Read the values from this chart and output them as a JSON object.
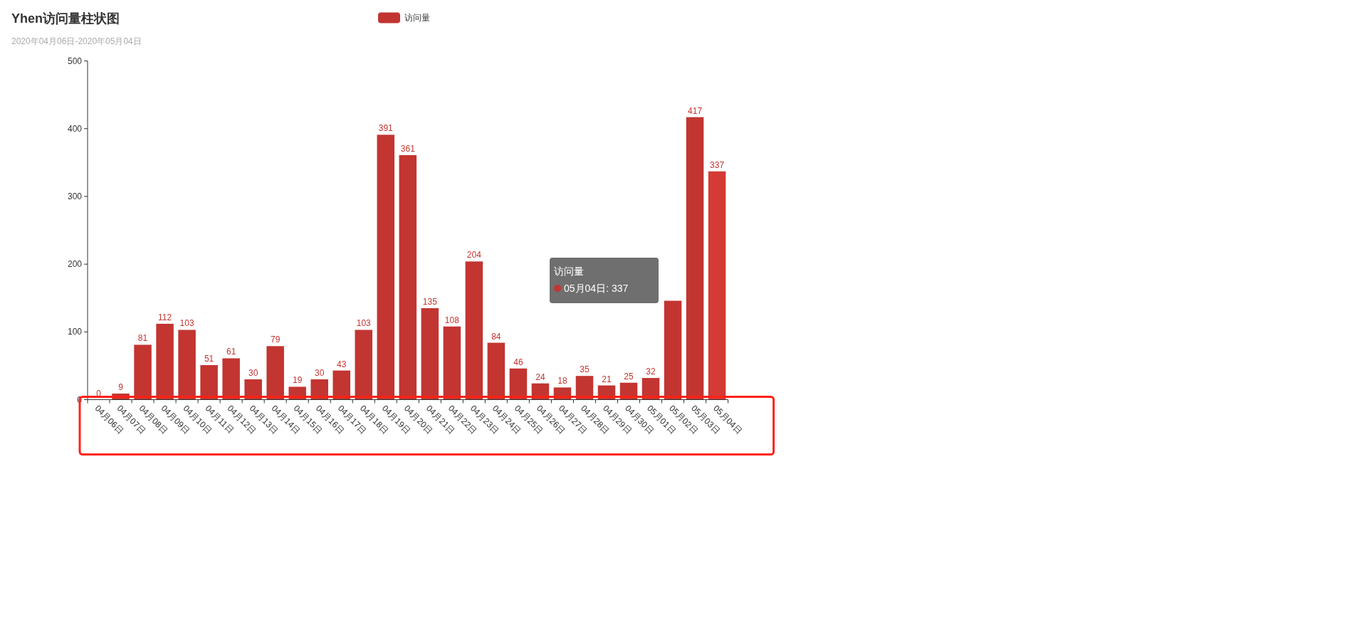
{
  "chart_data": {
    "type": "bar",
    "title": "Yhen访问量柱状图",
    "subtitle": "2020年04月06日-2020年05月04日",
    "categories": [
      "04月06日",
      "04月07日",
      "04月08日",
      "04月09日",
      "04月10日",
      "04月11日",
      "04月12日",
      "04月13日",
      "04月14日",
      "04月15日",
      "04月16日",
      "04月17日",
      "04月18日",
      "04月19日",
      "04月20日",
      "04月21日",
      "04月22日",
      "04月23日",
      "04月24日",
      "04月25日",
      "04月26日",
      "04月27日",
      "04月28日",
      "04月29日",
      "04月30日",
      "05月01日",
      "05月02日",
      "05月03日",
      "05月04日"
    ],
    "series": [
      {
        "name": "访问量",
        "color": "#c23531",
        "colors": [
          "#c23531",
          "#c23531",
          "#c23531",
          "#c23531",
          "#c23531",
          "#c23531",
          "#c23531",
          "#c23531",
          "#c23531",
          "#c23531",
          "#c23531",
          "#c23531",
          "#c23531",
          "#c23531",
          "#c23531",
          "#c23531",
          "#c23531",
          "#c23531",
          "#c23531",
          "#c23531",
          "#c23531",
          "#c23531",
          "#c23531",
          "#c23531",
          "#c23531",
          "#c23531",
          "#c23531",
          "#c23531",
          "#d53a35"
        ],
        "values": [
          0,
          9,
          81,
          112,
          103,
          51,
          61,
          30,
          79,
          19,
          30,
          43,
          103,
          391,
          361,
          135,
          108,
          204,
          84,
          46,
          24,
          18,
          35,
          21,
          25,
          32,
          146,
          417,
          337
        ],
        "value_labels": [
          "0",
          "9",
          "81",
          "112",
          "103",
          "51",
          "61",
          "30",
          "79",
          "19",
          "30",
          "43",
          "103",
          "391",
          "361",
          "135",
          "108",
          "204",
          "84",
          "46",
          "24",
          "18",
          "35",
          "21",
          "25",
          "32",
          null,
          "417",
          "337"
        ]
      }
    ],
    "ylim": [
      0,
      500
    ],
    "yticks": [
      0,
      100,
      200,
      300,
      400,
      500
    ],
    "legend": "top",
    "grid": false,
    "annotations": [
      "访问量",
      "05月04日: 337"
    ]
  }
}
